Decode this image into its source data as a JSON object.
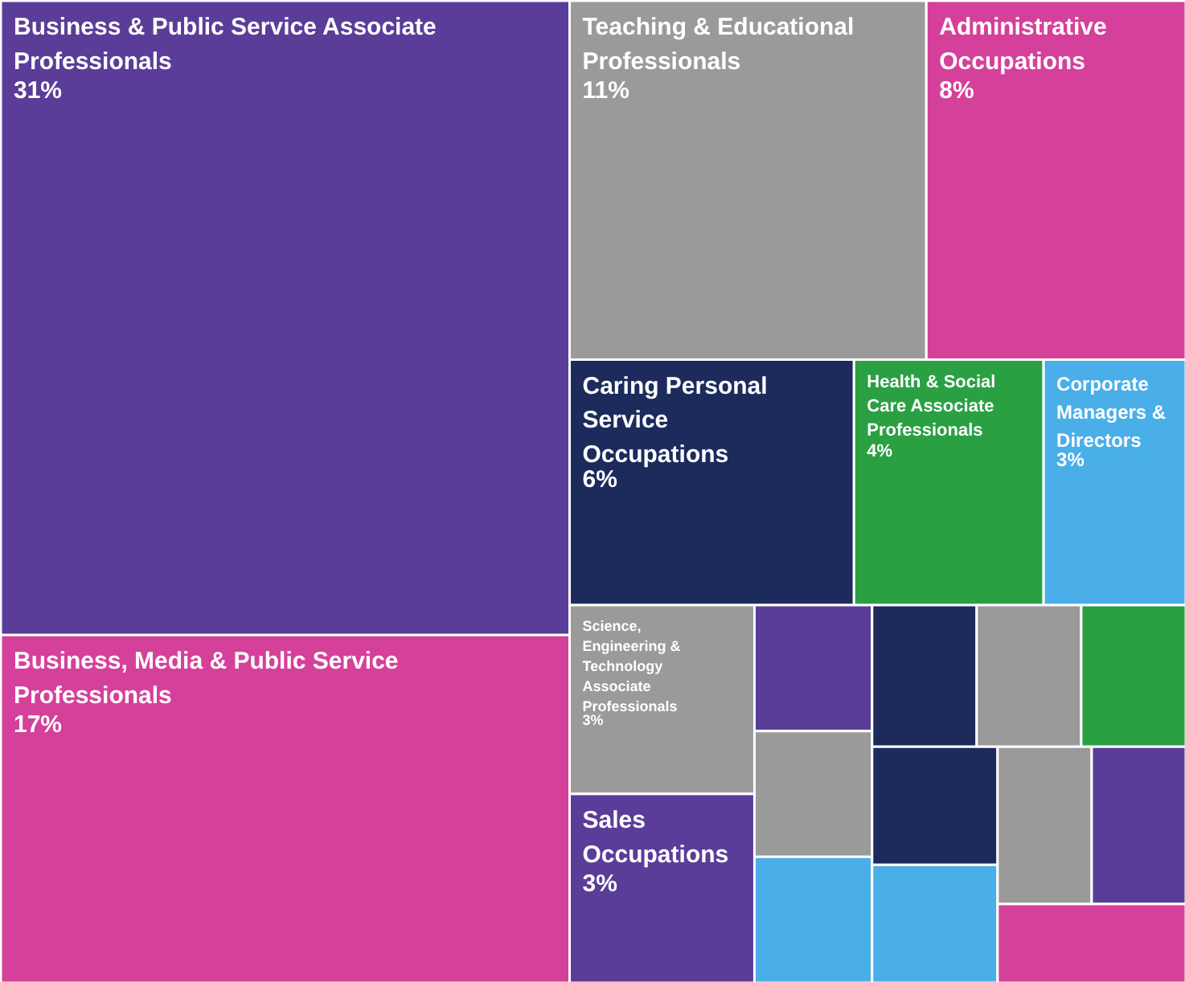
{
  "chart_data": {
    "type": "other",
    "value_labels": [
      "31%",
      "17%",
      "11%",
      "8%",
      "6%",
      "4%",
      "3%",
      "3%",
      "3%",
      null,
      null,
      null,
      null,
      null,
      null,
      null,
      null,
      null,
      null,
      null
    ],
    "categories": [
      "Business & Public Service Associate Professionals",
      "Business, Media & Public Service Professionals",
      "Teaching & Educational Professionals",
      "Administrative Occupations",
      "Caring Personal Service Occupations",
      "Health & Social Care Associate Professionals",
      "Corporate Managers & Directors",
      "Science, Engineering & Technology Associate Professionals",
      "Sales Occupations",
      null,
      null,
      null,
      null,
      null,
      null,
      null,
      null,
      null,
      null,
      null
    ],
    "values": [
      31,
      17,
      11,
      8,
      6,
      4,
      3,
      3,
      3,
      null,
      null,
      null,
      null,
      null,
      null,
      null,
      null,
      null,
      null,
      null
    ],
    "colors": [
      "#5a3d98",
      "#d5409a",
      "#9a9a9a",
      "#d5409a",
      "#1c2b5c",
      "#2aa043",
      "#4aaee8",
      "#9a9a9a",
      "#5a3d98",
      "#5a3d98",
      "#9a9a9a",
      "#4aaee8",
      "#1c2b5c",
      "#9a9a9a",
      "#2aa043",
      "#1c2b5c",
      "#4aaee8",
      "#9a9a9a",
      "#5a3d98",
      "#d5409a"
    ]
  }
}
